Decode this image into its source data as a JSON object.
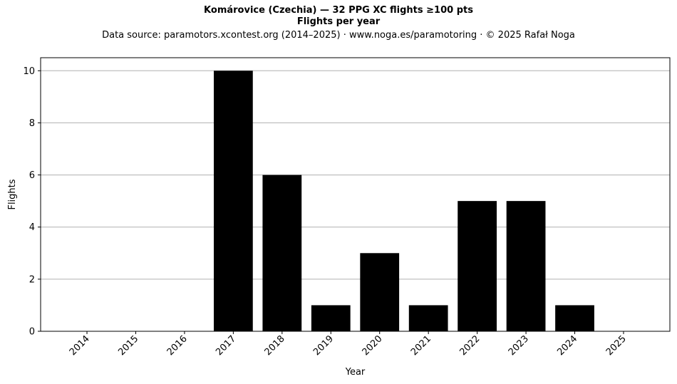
{
  "chart_data": {
    "type": "bar",
    "title": "Komárovice (Czechia)  —  32 PPG XC flights ≥100 pts",
    "subtitle": "Flights per year",
    "source_note": "Data source: paramotors.xcontest.org (2014–2025)  ·  www.noga.es/paramotoring  ·  © 2025 Rafał Noga",
    "xlabel": "Year",
    "ylabel": "Flights",
    "categories": [
      "2014",
      "2015",
      "2016",
      "2017",
      "2018",
      "2019",
      "2020",
      "2021",
      "2022",
      "2023",
      "2024",
      "2025"
    ],
    "values": [
      0,
      0,
      0,
      10,
      6,
      1,
      3,
      1,
      5,
      5,
      1,
      0
    ],
    "ylim": [
      0,
      10.5
    ],
    "yticks": [
      0,
      2,
      4,
      6,
      8,
      10
    ],
    "grid": "horizontal",
    "bar_color": "#000000",
    "grid_color": "#b0b0b0"
  }
}
